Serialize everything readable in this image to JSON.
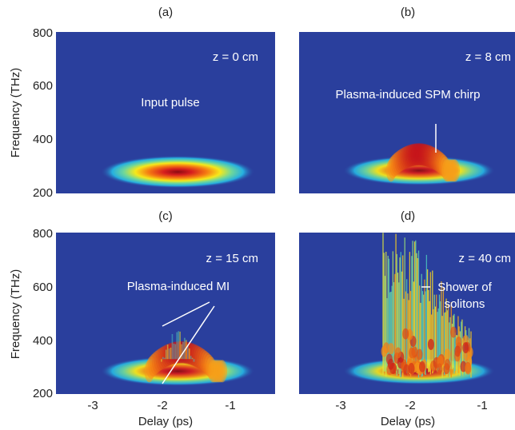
{
  "colors": {
    "background": "#2a3f9d",
    "map_low": "#2a3f9d",
    "map_high": "#c20c18",
    "annotation_line": "#ffffff"
  },
  "colormap": "jet",
  "chart_data": [
    {
      "type": "heatmap",
      "panel_label": "(a)",
      "z_label": "z = 0 cm",
      "annotation": "Input pulse",
      "xlabel": "",
      "ylabel": "Frequency (THz)",
      "xlim": [
        -3.5,
        -0.8
      ],
      "ylim": [
        200,
        800
      ],
      "x_ticks": [],
      "y_ticks": [
        "800",
        "600",
        "400",
        "200"
      ],
      "features": [
        {
          "kind": "gaussian_blob",
          "center_delay_ps": -2.0,
          "center_freq_thz": 280,
          "width_delay_ps": 1.9,
          "width_freq_thz": 55,
          "peak": 1.0
        }
      ]
    },
    {
      "type": "heatmap",
      "panel_label": "(b)",
      "z_label": "z = 8 cm",
      "annotation": "Plasma-induced SPM chirp",
      "xlabel": "",
      "ylabel": "",
      "xlim": [
        -3.5,
        -0.8
      ],
      "ylim": [
        200,
        800
      ],
      "x_ticks": [],
      "y_ticks": [],
      "features": [
        {
          "kind": "gaussian_blob",
          "center_delay_ps": -2.0,
          "center_freq_thz": 285,
          "width_delay_ps": 1.9,
          "width_freq_thz": 50,
          "peak": 0.95
        },
        {
          "kind": "chirp_arc",
          "delay_from_ps": -2.35,
          "delay_to_ps": -1.55,
          "peak_freq_thz": 345,
          "base_freq_thz": 285,
          "peak": 1.0
        }
      ]
    },
    {
      "type": "heatmap",
      "panel_label": "(c)",
      "z_label": "z = 15 cm",
      "annotation": "Plasma-induced MI",
      "xlabel": "Delay (ps)",
      "ylabel": "Frequency (THz)",
      "xlim": [
        -3.5,
        -0.8
      ],
      "ylim": [
        200,
        800
      ],
      "x_ticks": [
        "-3",
        "-2",
        "-1"
      ],
      "y_ticks": [
        "800",
        "600",
        "400",
        "200"
      ],
      "features": [
        {
          "kind": "gaussian_blob",
          "center_delay_ps": -2.0,
          "center_freq_thz": 285,
          "width_delay_ps": 1.9,
          "width_freq_thz": 50,
          "peak": 0.95
        },
        {
          "kind": "chirp_arc",
          "delay_from_ps": -2.35,
          "delay_to_ps": -1.45,
          "peak_freq_thz": 355,
          "base_freq_thz": 285,
          "peak": 1.0
        },
        {
          "kind": "mi_fringes",
          "delay_from_ps": -2.2,
          "delay_to_ps": -1.8,
          "max_freq_thz": 440,
          "peak": 0.55
        }
      ]
    },
    {
      "type": "heatmap",
      "panel_label": "(d)",
      "z_label": "z = 40 cm",
      "annotation": "Shower of solitons",
      "xlabel": "Delay (ps)",
      "ylabel": "",
      "xlim": [
        -3.5,
        -0.8
      ],
      "ylim": [
        200,
        800
      ],
      "x_ticks": [
        "-3",
        "-2",
        "-1"
      ],
      "y_ticks": [],
      "features": [
        {
          "kind": "gaussian_blob",
          "center_delay_ps": -2.0,
          "center_freq_thz": 285,
          "width_delay_ps": 1.9,
          "width_freq_thz": 45,
          "peak": 0.9
        },
        {
          "kind": "soliton_shower",
          "delay_from_ps": -2.45,
          "delay_to_ps": -1.35,
          "max_freq_thz": 800,
          "peak": 1.0
        }
      ]
    }
  ]
}
